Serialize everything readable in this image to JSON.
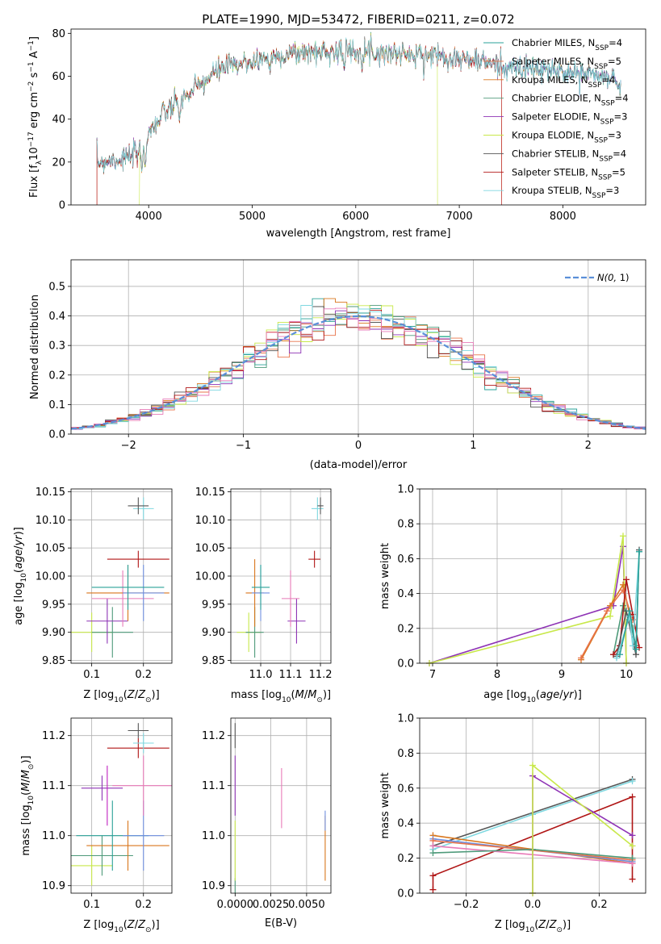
{
  "colors": {
    "chabrier_miles": "#2aa198",
    "salpeter_miles": "#e8734a",
    "kroupa_miles": "#d9761c",
    "chabrier_elodie": "#4e9a7a",
    "salpeter_elodie": "#8e33b5",
    "kroupa_elodie": "#c8e84a",
    "chabrier_stelib": "#555555",
    "salpeter_stelib": "#b01515",
    "kroupa_stelib": "#7fd8e0",
    "extra_pink": "#e87ab8",
    "extra_blue": "#6f8fe0",
    "extra_magenta": "#c020c0",
    "normal": "#5b8fd8"
  },
  "chart_data": [
    {
      "id": "spectrum",
      "type": "line",
      "title": "PLATE=1990, MJD=53472, FIBERID=0211, z=0.072",
      "xlabel": "wavelength [Angstrom, rest frame]",
      "ylabel": "Flux [f",
      "xlim": [
        3250,
        8800
      ],
      "ylim": [
        0,
        82
      ],
      "xticks": [
        4000,
        5000,
        6000,
        7000,
        8000
      ],
      "yticks": [
        0,
        20,
        40,
        60,
        80
      ],
      "legend_position": "upper right",
      "series_names": [
        "Chabrier MILES, N",
        "Salpeter MILES, N",
        "Kroupa MILES, N",
        "Chabrier ELODIE, N",
        "Salpeter ELODIE, N",
        "Kroupa ELODIE, N",
        "Chabrier STELIB, N",
        "Salpeter STELIB, N",
        "Kroupa STELIB, N"
      ],
      "nssp": [
        "4",
        "5",
        "4",
        "4",
        "3",
        "3",
        "4",
        "5",
        "3"
      ],
      "continuum": [
        [
          3500,
          20
        ],
        [
          3800,
          22
        ],
        [
          3900,
          24
        ],
        [
          4000,
          33
        ],
        [
          4100,
          41
        ],
        [
          4300,
          48
        ],
        [
          4500,
          56
        ],
        [
          4700,
          64
        ],
        [
          4900,
          66
        ],
        [
          5100,
          68
        ],
        [
          5300,
          70
        ],
        [
          5500,
          71
        ],
        [
          5800,
          72
        ],
        [
          6000,
          72
        ],
        [
          6300,
          71
        ],
        [
          6600,
          70
        ],
        [
          6800,
          70
        ],
        [
          7000,
          68
        ],
        [
          7200,
          67
        ],
        [
          7500,
          64
        ],
        [
          7800,
          63
        ],
        [
          8000,
          62
        ],
        [
          8300,
          61
        ],
        [
          8500,
          58
        ],
        [
          8560,
          57
        ]
      ]
    },
    {
      "id": "residuals",
      "type": "step-histogram",
      "xlabel": "(data-model)/error",
      "ylabel": "Normed distribution",
      "xlim": [
        -2.5,
        2.5
      ],
      "ylim": [
        0,
        0.59
      ],
      "xticks": [
        -2,
        -1,
        0,
        1,
        2
      ],
      "yticks": [
        0.0,
        0.1,
        0.2,
        0.3,
        0.4,
        0.5
      ],
      "bin_width": 0.1,
      "legend_label": "N(0, 1)",
      "legend_position": "upper right",
      "grid": true
    },
    {
      "id": "age_vs_z",
      "type": "errorbar",
      "xlabel": "Z [log",
      "ylabel": "age  [log",
      "xlim": [
        0.06,
        0.255
      ],
      "ylim": [
        9.845,
        10.155
      ],
      "xticks": [
        0.1,
        0.2
      ],
      "yticks": [
        9.85,
        9.9,
        9.95,
        10.0,
        10.05,
        10.1,
        10.15
      ],
      "points": [
        {
          "c": "kroupa_elodie",
          "x": 0.1,
          "xe": 0.04,
          "y": 9.9,
          "ye": 0.035
        },
        {
          "c": "chabrier_elodie",
          "x": 0.14,
          "xe": 0.04,
          "y": 9.9,
          "ye": 0.045
        },
        {
          "c": "salpeter_elodie",
          "x": 0.13,
          "xe": 0.04,
          "y": 9.92,
          "ye": 0.04
        },
        {
          "c": "extra_pink",
          "x": 0.16,
          "xe": 0.06,
          "y": 9.96,
          "ye": 0.05
        },
        {
          "c": "kroupa_miles",
          "x": 0.17,
          "xe": 0.08,
          "y": 9.97,
          "ye": 0.05
        },
        {
          "c": "extra_blue",
          "x": 0.2,
          "xe": 0.04,
          "y": 9.97,
          "ye": 0.05
        },
        {
          "c": "chabrier_miles",
          "x": 0.17,
          "xe": 0.07,
          "y": 9.98,
          "ye": 0.04
        },
        {
          "c": "salpeter_stelib",
          "x": 0.19,
          "xe": 0.06,
          "y": 10.03,
          "ye": 0.015
        },
        {
          "c": "kroupa_stelib",
          "x": 0.2,
          "xe": 0.02,
          "y": 10.12,
          "ye": 0.02
        },
        {
          "c": "chabrier_stelib",
          "x": 0.19,
          "xe": 0.02,
          "y": 10.125,
          "ye": 0.015
        }
      ]
    },
    {
      "id": "age_vs_mass",
      "type": "errorbar",
      "xlabel": "mass [log",
      "ylabel": "",
      "xlim": [
        10.9,
        11.235
      ],
      "ylim": [
        9.845,
        10.155
      ],
      "xticks": [
        11.0,
        11.1,
        11.2
      ],
      "yticks": [
        9.85,
        9.9,
        9.95,
        10.0,
        10.05,
        10.1,
        10.15
      ],
      "points": [
        {
          "c": "kroupa_elodie",
          "x": 10.96,
          "xe": 0.04,
          "y": 9.9,
          "ye": 0.035
        },
        {
          "c": "chabrier_elodie",
          "x": 10.98,
          "xe": 0.03,
          "y": 9.9,
          "ye": 0.045
        },
        {
          "c": "salpeter_elodie",
          "x": 11.12,
          "xe": 0.03,
          "y": 9.92,
          "ye": 0.04
        },
        {
          "c": "extra_pink",
          "x": 11.1,
          "xe": 0.03,
          "y": 9.96,
          "ye": 0.05
        },
        {
          "c": "kroupa_miles",
          "x": 10.98,
          "xe": 0.03,
          "y": 9.97,
          "ye": 0.06
        },
        {
          "c": "extra_blue",
          "x": 11.0,
          "xe": 0.03,
          "y": 9.97,
          "ye": 0.05
        },
        {
          "c": "chabrier_miles",
          "x": 11.0,
          "xe": 0.03,
          "y": 9.98,
          "ye": 0.04
        },
        {
          "c": "salpeter_stelib",
          "x": 11.18,
          "xe": 0.02,
          "y": 10.03,
          "ye": 0.015
        },
        {
          "c": "kroupa_stelib",
          "x": 11.19,
          "xe": 0.02,
          "y": 10.12,
          "ye": 0.02
        },
        {
          "c": "chabrier_stelib",
          "x": 11.2,
          "xe": 0.01,
          "y": 10.125,
          "ye": 0.015
        }
      ]
    },
    {
      "id": "weight_vs_age",
      "type": "line",
      "xlabel": "age  [log",
      "ylabel": "mass weight",
      "xlim": [
        6.8,
        10.3
      ],
      "ylim": [
        0,
        1.0
      ],
      "xticks": [
        7,
        8,
        9,
        10
      ],
      "yticks": [
        0.0,
        0.2,
        0.4,
        0.6,
        0.8,
        1.0
      ],
      "grid": true,
      "series": [
        {
          "c": "salpeter_elodie",
          "pts": [
            [
              6.95,
              0.0
            ],
            [
              9.8,
              0.33
            ],
            [
              9.95,
              0.67
            ],
            [
              10.0,
              0.0
            ]
          ]
        },
        {
          "c": "kroupa_elodie",
          "pts": [
            [
              6.95,
              0.0
            ],
            [
              9.75,
              0.27
            ],
            [
              9.95,
              0.73
            ],
            [
              10.0,
              0.0
            ]
          ]
        },
        {
          "c": "kroupa_miles",
          "pts": [
            [
              9.3,
              0.02
            ],
            [
              9.75,
              0.33
            ],
            [
              9.95,
              0.45
            ],
            [
              10.1,
              0.2
            ]
          ]
        },
        {
          "c": "salpeter_miles",
          "pts": [
            [
              9.3,
              0.03
            ],
            [
              9.7,
              0.3
            ],
            [
              9.95,
              0.42
            ],
            [
              10.1,
              0.25
            ]
          ]
        },
        {
          "c": "chabrier_elodie",
          "pts": [
            [
              9.8,
              0.05
            ],
            [
              9.95,
              0.33
            ],
            [
              10.05,
              0.25
            ],
            [
              10.15,
              0.1
            ]
          ]
        },
        {
          "c": "salpeter_stelib",
          "pts": [
            [
              9.8,
              0.05
            ],
            [
              9.9,
              0.1
            ],
            [
              10.0,
              0.48
            ],
            [
              10.1,
              0.28
            ],
            [
              10.2,
              0.09
            ]
          ]
        },
        {
          "c": "chabrier_stelib",
          "pts": [
            [
              9.85,
              0.04
            ],
            [
              10.0,
              0.3
            ],
            [
              10.15,
              0.05
            ],
            [
              10.2,
              0.65
            ]
          ]
        },
        {
          "c": "kroupa_stelib",
          "pts": [
            [
              9.85,
              0.03
            ],
            [
              10.05,
              0.27
            ],
            [
              10.1,
              0.1
            ],
            [
              10.2,
              0.64
            ]
          ]
        },
        {
          "c": "chabrier_miles",
          "pts": [
            [
              9.9,
              0.05
            ],
            [
              10.05,
              0.3
            ],
            [
              10.15,
              0.08
            ],
            [
              10.2,
              0.64
            ]
          ]
        }
      ]
    },
    {
      "id": "mass_vs_z",
      "type": "errorbar",
      "xlabel": "Z [log",
      "ylabel": "mass [log",
      "xlim": [
        0.06,
        0.255
      ],
      "ylim": [
        10.885,
        11.235
      ],
      "xticks": [
        0.1,
        0.2
      ],
      "yticks": [
        10.9,
        11.0,
        11.1,
        11.2
      ],
      "points": [
        {
          "c": "kroupa_elodie",
          "x": 0.1,
          "xe": 0.04,
          "y": 10.94,
          "ye": 0.04
        },
        {
          "c": "chabrier_elodie",
          "x": 0.12,
          "xe": 0.06,
          "y": 10.96,
          "ye": 0.04
        },
        {
          "c": "kroupa_miles",
          "x": 0.17,
          "xe": 0.08,
          "y": 10.98,
          "ye": 0.05
        },
        {
          "c": "chabrier_miles",
          "x": 0.14,
          "xe": 0.07,
          "y": 11.0,
          "ye": 0.07
        },
        {
          "c": "extra_blue",
          "x": 0.2,
          "xe": 0.04,
          "y": 11.0,
          "ye": 0.07
        },
        {
          "c": "extra_pink",
          "x": 0.2,
          "xe": 0.06,
          "y": 11.1,
          "ye": 0.06
        },
        {
          "c": "salpeter_elodie",
          "x": 0.12,
          "xe": 0.04,
          "y": 11.095,
          "ye": 0.025
        },
        {
          "c": "extra_magenta",
          "x": 0.13,
          "xe": 0.0,
          "y": 11.08,
          "ye": 0.06
        },
        {
          "c": "salpeter_stelib",
          "x": 0.19,
          "xe": 0.06,
          "y": 11.175,
          "ye": 0.02
        },
        {
          "c": "kroupa_stelib",
          "x": 0.2,
          "xe": 0.02,
          "y": 11.185,
          "ye": 0.02
        },
        {
          "c": "chabrier_stelib",
          "x": 0.19,
          "xe": 0.02,
          "y": 11.21,
          "ye": 0.015
        }
      ]
    },
    {
      "id": "mass_vs_ebv",
      "type": "errorbar",
      "xlabel": "E(B-V)",
      "ylabel": "",
      "xlim": [
        -0.0003,
        0.0067
      ],
      "ylim": [
        10.885,
        11.235
      ],
      "xticks": [
        0.0,
        0.0025,
        0.005
      ],
      "xticklabels": [
        "0.0000",
        "0.0025",
        "0.0050"
      ],
      "yticks": [
        10.9,
        11.0,
        11.1,
        11.2
      ],
      "points": [
        {
          "c": "chabrier_elodie",
          "x": 0.0,
          "xe": 0.0,
          "y": 10.9,
          "ye": 0.015
        },
        {
          "c": "kroupa_elodie",
          "x": 0.0,
          "xe": 0.0,
          "y": 10.97,
          "ye": 0.06
        },
        {
          "c": "salpeter_elodie",
          "x": 0.0,
          "xe": 0.0,
          "y": 11.1,
          "ye": 0.06
        },
        {
          "c": "chabrier_stelib",
          "x": 0.0,
          "xe": 0.0,
          "y": 11.2,
          "ye": 0.025
        },
        {
          "c": "extra_pink",
          "x": 0.00325,
          "xe": 0.0,
          "y": 11.075,
          "ye": 0.06
        },
        {
          "c": "kroupa_miles",
          "x": 0.0063,
          "xe": 0.0,
          "y": 10.975,
          "ye": 0.065
        },
        {
          "c": "extra_blue",
          "x": 0.0063,
          "xe": 0.0,
          "y": 11.03,
          "ye": 0.02
        }
      ]
    },
    {
      "id": "weight_vs_z",
      "type": "line",
      "xlabel": "Z [log",
      "ylabel": "mass weight",
      "xlim": [
        -0.34,
        0.34
      ],
      "ylim": [
        0,
        1.0
      ],
      "xticks": [
        -0.2,
        0.0,
        0.2
      ],
      "yticks": [
        0.0,
        0.2,
        0.4,
        0.6,
        0.8,
        1.0
      ],
      "grid": true,
      "series": [
        {
          "c": "chabrier_stelib",
          "pts": [
            [
              -0.3,
              0.27
            ],
            [
              0.3,
              0.65
            ]
          ]
        },
        {
          "c": "kroupa_stelib",
          "pts": [
            [
              -0.3,
              0.25
            ],
            [
              0.0,
              0.45
            ],
            [
              0.3,
              0.64
            ]
          ]
        },
        {
          "c": "salpeter_stelib",
          "pts": [
            [
              -0.3,
              0.02
            ],
            [
              -0.3,
              0.1
            ],
            [
              0.3,
              0.55
            ],
            [
              0.3,
              0.08
            ]
          ]
        },
        {
          "c": "kroupa_miles",
          "pts": [
            [
              -0.3,
              0.33
            ],
            [
              0.3,
              0.17
            ]
          ]
        },
        {
          "c": "extra_blue",
          "pts": [
            [
              -0.3,
              0.31
            ],
            [
              0.3,
              0.18
            ]
          ]
        },
        {
          "c": "salpeter_miles",
          "pts": [
            [
              -0.3,
              0.3
            ],
            [
              0.3,
              0.19
            ]
          ]
        },
        {
          "c": "extra_pink",
          "pts": [
            [
              -0.3,
              0.27
            ],
            [
              0.3,
              0.17
            ]
          ]
        },
        {
          "c": "chabrier_elodie",
          "pts": [
            [
              -0.3,
              0.23
            ],
            [
              0.0,
              0.25
            ],
            [
              0.3,
              0.2
            ]
          ]
        },
        {
          "c": "salpeter_elodie",
          "pts": [
            [
              0.0,
              0.0
            ],
            [
              0.0,
              0.67
            ],
            [
              0.3,
              0.33
            ]
          ]
        },
        {
          "c": "kroupa_elodie",
          "pts": [
            [
              0.0,
              0.0
            ],
            [
              0.0,
              0.73
            ],
            [
              0.3,
              0.27
            ]
          ]
        }
      ]
    }
  ]
}
